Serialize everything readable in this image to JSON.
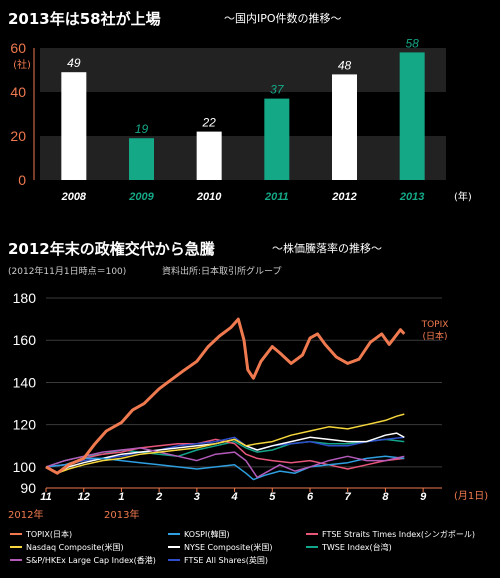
{
  "theme": {
    "background": "#000000",
    "teal": "#14a887",
    "white": "#ffffff",
    "orange": "#f07a4f",
    "band": "#222222",
    "axis_color": "#f07a4f"
  },
  "chart_data": [
    {
      "type": "bar",
      "title": "2013年は58社が上場",
      "subtitle": "〜国内IPO件数の推移〜",
      "categories": [
        "2008",
        "2009",
        "2010",
        "2011",
        "2012",
        "2013"
      ],
      "values": [
        49,
        19,
        22,
        37,
        48,
        58
      ],
      "bar_colors": [
        "#ffffff",
        "#14a887",
        "#ffffff",
        "#14a887",
        "#ffffff",
        "#14a887"
      ],
      "value_label_colors": [
        "#ffffff",
        "#14a887",
        "#ffffff",
        "#14a887",
        "#ffffff",
        "#14a887"
      ],
      "category_label_colors": [
        "#ffffff",
        "#14a887",
        "#ffffff",
        "#14a887",
        "#ffffff",
        "#14a887"
      ],
      "y_ticks": [
        "0",
        "20",
        "40",
        "60"
      ],
      "ylabel": "(社)",
      "x_unit": "(年)",
      "ylim": [
        0,
        60
      ],
      "grid": "alternating bands"
    },
    {
      "type": "line",
      "title": "2012年末の政権交代から急騰",
      "subtitle": "〜株価騰落率の推移〜",
      "note": "(2012年11月1日時点＝100)",
      "source": "資料出所:日本取引所グループ",
      "x_ticks": [
        "11",
        "12",
        "1",
        "2",
        "3",
        "4",
        "5",
        "6",
        "7",
        "8",
        "9"
      ],
      "x_unit": "(月1日)",
      "year_labels": [
        "2012年",
        "2013年"
      ],
      "y_ticks": [
        "180",
        "160",
        "140",
        "120",
        "100",
        "90"
      ],
      "ylim": [
        90,
        180
      ],
      "xlim": [
        0,
        10.5
      ],
      "annotation": "TOPIX\n(日本)",
      "series": [
        {
          "name": "TOPIX(日本)",
          "color": "#f07a4f",
          "points": [
            [
              0,
              100
            ],
            [
              0.3,
              97
            ],
            [
              0.6,
              101
            ],
            [
              1,
              104
            ],
            [
              1.3,
              111
            ],
            [
              1.6,
              117
            ],
            [
              2,
              121
            ],
            [
              2.3,
              127
            ],
            [
              2.6,
              130
            ],
            [
              3,
              137
            ],
            [
              3.3,
              141
            ],
            [
              3.6,
              145
            ],
            [
              4,
              150
            ],
            [
              4.3,
              157
            ],
            [
              4.6,
              162
            ],
            [
              4.9,
              166
            ],
            [
              5.1,
              170
            ],
            [
              5.25,
              160
            ],
            [
              5.35,
              146
            ],
            [
              5.5,
              142
            ],
            [
              5.7,
              150
            ],
            [
              6,
              157
            ],
            [
              6.2,
              154
            ],
            [
              6.5,
              149
            ],
            [
              6.8,
              153
            ],
            [
              7,
              161
            ],
            [
              7.2,
              163
            ],
            [
              7.4,
              158
            ],
            [
              7.7,
              152
            ],
            [
              8,
              149
            ],
            [
              8.3,
              151
            ],
            [
              8.6,
              159
            ],
            [
              8.9,
              163
            ],
            [
              9.1,
              158
            ],
            [
              9.4,
              165
            ],
            [
              9.5,
              163
            ]
          ]
        },
        {
          "name": "Nasdaq Composite(米国)",
          "color": "#f5d63c",
          "points": [
            [
              0,
              100
            ],
            [
              0.3,
              97
            ],
            [
              0.6,
              99
            ],
            [
              1,
              101
            ],
            [
              1.5,
              103
            ],
            [
              2,
              104
            ],
            [
              2.5,
              106
            ],
            [
              3,
              107
            ],
            [
              3.5,
              108
            ],
            [
              4,
              109
            ],
            [
              4.5,
              111
            ],
            [
              5,
              113
            ],
            [
              5.3,
              110
            ],
            [
              5.6,
              111
            ],
            [
              6,
              112
            ],
            [
              6.5,
              115
            ],
            [
              7,
              117
            ],
            [
              7.5,
              119
            ],
            [
              8,
              118
            ],
            [
              8.5,
              120
            ],
            [
              9,
              122
            ],
            [
              9.3,
              124
            ],
            [
              9.5,
              125
            ]
          ]
        },
        {
          "name": "S&P/HKEx Large Cap Index(香港)",
          "color": "#b35ab8",
          "points": [
            [
              0,
              100
            ],
            [
              0.5,
              103
            ],
            [
              1,
              105
            ],
            [
              1.5,
              107
            ],
            [
              2,
              108
            ],
            [
              2.5,
              109
            ],
            [
              3,
              107
            ],
            [
              3.5,
              105
            ],
            [
              4,
              103
            ],
            [
              4.5,
              106
            ],
            [
              5,
              107
            ],
            [
              5.3,
              103
            ],
            [
              5.6,
              95
            ],
            [
              5.8,
              97
            ],
            [
              6.2,
              101
            ],
            [
              6.6,
              98
            ],
            [
              7,
              100
            ],
            [
              7.5,
              103
            ],
            [
              8,
              105
            ],
            [
              8.5,
              103
            ],
            [
              9,
              103
            ],
            [
              9.5,
              105
            ]
          ]
        },
        {
          "name": "KOSPI(韓国)",
          "color": "#2e9fe0",
          "points": [
            [
              0,
              100
            ],
            [
              0.5,
              101
            ],
            [
              1,
              104
            ],
            [
              1.5,
              104
            ],
            [
              2,
              103
            ],
            [
              2.5,
              102
            ],
            [
              3,
              101
            ],
            [
              3.5,
              100
            ],
            [
              4,
              99
            ],
            [
              4.5,
              100
            ],
            [
              5,
              101
            ],
            [
              5.3,
              97
            ],
            [
              5.5,
              94
            ],
            [
              5.8,
              96
            ],
            [
              6.2,
              98
            ],
            [
              6.6,
              97
            ],
            [
              7,
              100
            ],
            [
              7.5,
              101
            ],
            [
              8,
              102
            ],
            [
              8.5,
              104
            ],
            [
              9,
              105
            ],
            [
              9.5,
              104
            ]
          ]
        },
        {
          "name": "NYSE Composite(米国)",
          "color": "#ffffff",
          "points": [
            [
              0,
              100
            ],
            [
              0.3,
              97
            ],
            [
              0.6,
              100
            ],
            [
              1,
              102
            ],
            [
              1.5,
              104
            ],
            [
              2,
              106
            ],
            [
              2.5,
              107
            ],
            [
              3,
              108
            ],
            [
              3.5,
              109
            ],
            [
              4,
              110
            ],
            [
              4.5,
              111
            ],
            [
              5,
              113
            ],
            [
              5.3,
              110
            ],
            [
              5.6,
              108
            ],
            [
              6,
              110
            ],
            [
              6.5,
              112
            ],
            [
              7,
              114
            ],
            [
              7.5,
              113
            ],
            [
              8,
              112
            ],
            [
              8.5,
              112
            ],
            [
              9,
              115
            ],
            [
              9.3,
              116
            ],
            [
              9.5,
              114
            ]
          ]
        },
        {
          "name": "FTSE All Shares(英国)",
          "color": "#2e4fc9",
          "points": [
            [
              0,
              100
            ],
            [
              0.5,
              101
            ],
            [
              1,
              103
            ],
            [
              1.5,
              104
            ],
            [
              2,
              105
            ],
            [
              2.5,
              107
            ],
            [
              3,
              108
            ],
            [
              3.5,
              110
            ],
            [
              4,
              111
            ],
            [
              4.5,
              112
            ],
            [
              5,
              114
            ],
            [
              5.3,
              110
            ],
            [
              5.6,
              108
            ],
            [
              6,
              110
            ],
            [
              6.5,
              111
            ],
            [
              7,
              112
            ],
            [
              7.5,
              110
            ],
            [
              8,
              110
            ],
            [
              8.5,
              112
            ],
            [
              9,
              113
            ],
            [
              9.5,
              114
            ]
          ]
        },
        {
          "name": "FTSE Straits Times Index(シンガポール)",
          "color": "#e8567a",
          "points": [
            [
              0,
              100
            ],
            [
              0.5,
              101
            ],
            [
              1,
              104
            ],
            [
              1.5,
              106
            ],
            [
              2,
              107
            ],
            [
              2.5,
              109
            ],
            [
              3,
              110
            ],
            [
              3.5,
              111
            ],
            [
              4,
              111
            ],
            [
              4.5,
              113
            ],
            [
              5,
              111
            ],
            [
              5.3,
              106
            ],
            [
              5.6,
              104
            ],
            [
              6,
              103
            ],
            [
              6.5,
              102
            ],
            [
              7,
              103
            ],
            [
              7.5,
              101
            ],
            [
              8,
              99
            ],
            [
              8.5,
              101
            ],
            [
              9,
              103
            ],
            [
              9.5,
              104
            ]
          ]
        },
        {
          "name": "TWSE Index(台湾)",
          "color": "#13a58a",
          "points": [
            [
              0,
              100
            ],
            [
              0.5,
              103
            ],
            [
              1,
              105
            ],
            [
              1.5,
              106
            ],
            [
              2,
              108
            ],
            [
              2.5,
              107
            ],
            [
              3,
              106
            ],
            [
              3.5,
              105
            ],
            [
              4,
              108
            ],
            [
              4.5,
              110
            ],
            [
              5,
              112
            ],
            [
              5.3,
              109
            ],
            [
              5.6,
              107
            ],
            [
              6,
              108
            ],
            [
              6.5,
              111
            ],
            [
              7,
              112
            ],
            [
              7.5,
              111
            ],
            [
              8,
              111
            ],
            [
              8.5,
              112
            ],
            [
              9,
              113
            ],
            [
              9.5,
              112
            ]
          ]
        }
      ]
    }
  ]
}
